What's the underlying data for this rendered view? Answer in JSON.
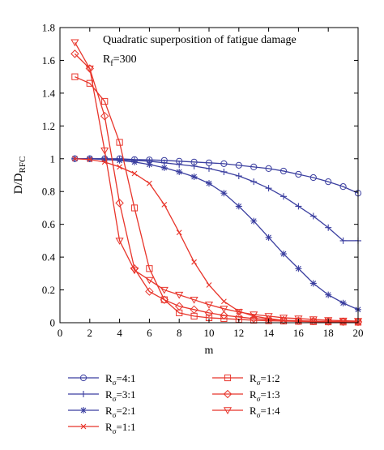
{
  "chart_data": {
    "type": "line",
    "title": "Quadratic superposition of fatigue damage",
    "subtitle": {
      "base": "R",
      "sub": "f",
      "rest": "=300"
    },
    "xlabel": "m",
    "ylabel": {
      "base": "D/D",
      "sub": "RFC"
    },
    "xlim": [
      0,
      20
    ],
    "ylim": [
      0,
      1.8
    ],
    "xticks": [
      "0",
      "2",
      "4",
      "6",
      "8",
      "10",
      "12",
      "14",
      "16",
      "18",
      "20"
    ],
    "yticks": [
      "0",
      "0.2",
      "0.4",
      "0.6",
      "0.8",
      "1",
      "1.2",
      "1.4",
      "1.6",
      "1.8"
    ],
    "grid": false,
    "legend_position": "bottom",
    "x": [
      1,
      2,
      3,
      4,
      5,
      6,
      7,
      8,
      9,
      10,
      11,
      12,
      13,
      14,
      15,
      16,
      17,
      18,
      19,
      20
    ],
    "series": [
      {
        "name": "4:1",
        "label_base": "R",
        "label_sub": "σ",
        "label_rest": "=4:1",
        "color": "#3b3fa0",
        "marker": "circle",
        "values": [
          1.0,
          1.0,
          1.0,
          1.0,
          0.995,
          0.993,
          0.99,
          0.985,
          0.98,
          0.975,
          0.97,
          0.96,
          0.95,
          0.94,
          0.925,
          0.905,
          0.885,
          0.86,
          0.83,
          0.79
        ]
      },
      {
        "name": "3:1",
        "label_base": "R",
        "label_sub": "σ",
        "label_rest": "=3:1",
        "color": "#3b3fa0",
        "marker": "plus",
        "values": [
          1.0,
          1.0,
          1.0,
          0.995,
          0.99,
          0.985,
          0.975,
          0.965,
          0.955,
          0.94,
          0.92,
          0.895,
          0.86,
          0.82,
          0.77,
          0.71,
          0.65,
          0.58,
          0.5,
          0.5
        ]
      },
      {
        "name": "2:1",
        "label_base": "R",
        "label_sub": "σ",
        "label_rest": "=2:1",
        "color": "#3b3fa0",
        "marker": "star",
        "values": [
          1.0,
          1.0,
          0.995,
          0.99,
          0.98,
          0.965,
          0.945,
          0.92,
          0.89,
          0.85,
          0.79,
          0.71,
          0.62,
          0.52,
          0.42,
          0.33,
          0.24,
          0.17,
          0.12,
          0.08
        ]
      },
      {
        "name": "1:1",
        "label_base": "R",
        "label_sub": "σ",
        "label_rest": "=1:1",
        "color": "#e8352b",
        "marker": "x",
        "values": [
          1.0,
          0.995,
          0.98,
          0.95,
          0.91,
          0.85,
          0.72,
          0.55,
          0.37,
          0.23,
          0.13,
          0.07,
          0.04,
          0.025,
          0.015,
          0.01,
          0.008,
          0.006,
          0.005,
          0.004
        ]
      },
      {
        "name": "1:2",
        "label_base": "R",
        "label_sub": "σ",
        "label_rest": "=1:2",
        "color": "#e8352b",
        "marker": "square",
        "values": [
          1.5,
          1.46,
          1.35,
          1.1,
          0.7,
          0.33,
          0.14,
          0.06,
          0.04,
          0.03,
          0.025,
          0.02,
          0.015,
          0.012,
          0.01,
          0.008,
          0.006,
          0.005,
          0.004,
          0.003
        ]
      },
      {
        "name": "1:3",
        "label_base": "R",
        "label_sub": "σ",
        "label_rest": "=1:3",
        "color": "#e8352b",
        "marker": "diamond",
        "values": [
          1.64,
          1.55,
          1.26,
          0.73,
          0.33,
          0.19,
          0.14,
          0.1,
          0.08,
          0.06,
          0.045,
          0.035,
          0.025,
          0.02,
          0.015,
          0.012,
          0.01,
          0.008,
          0.006,
          0.005
        ]
      },
      {
        "name": "1:4",
        "label_base": "R",
        "label_sub": "σ",
        "label_rest": "=1:4",
        "color": "#e8352b",
        "marker": "triangle-down",
        "values": [
          1.71,
          1.55,
          1.05,
          0.5,
          0.32,
          0.26,
          0.2,
          0.17,
          0.14,
          0.11,
          0.085,
          0.065,
          0.05,
          0.04,
          0.03,
          0.025,
          0.02,
          0.015,
          0.012,
          0.01
        ]
      }
    ]
  }
}
